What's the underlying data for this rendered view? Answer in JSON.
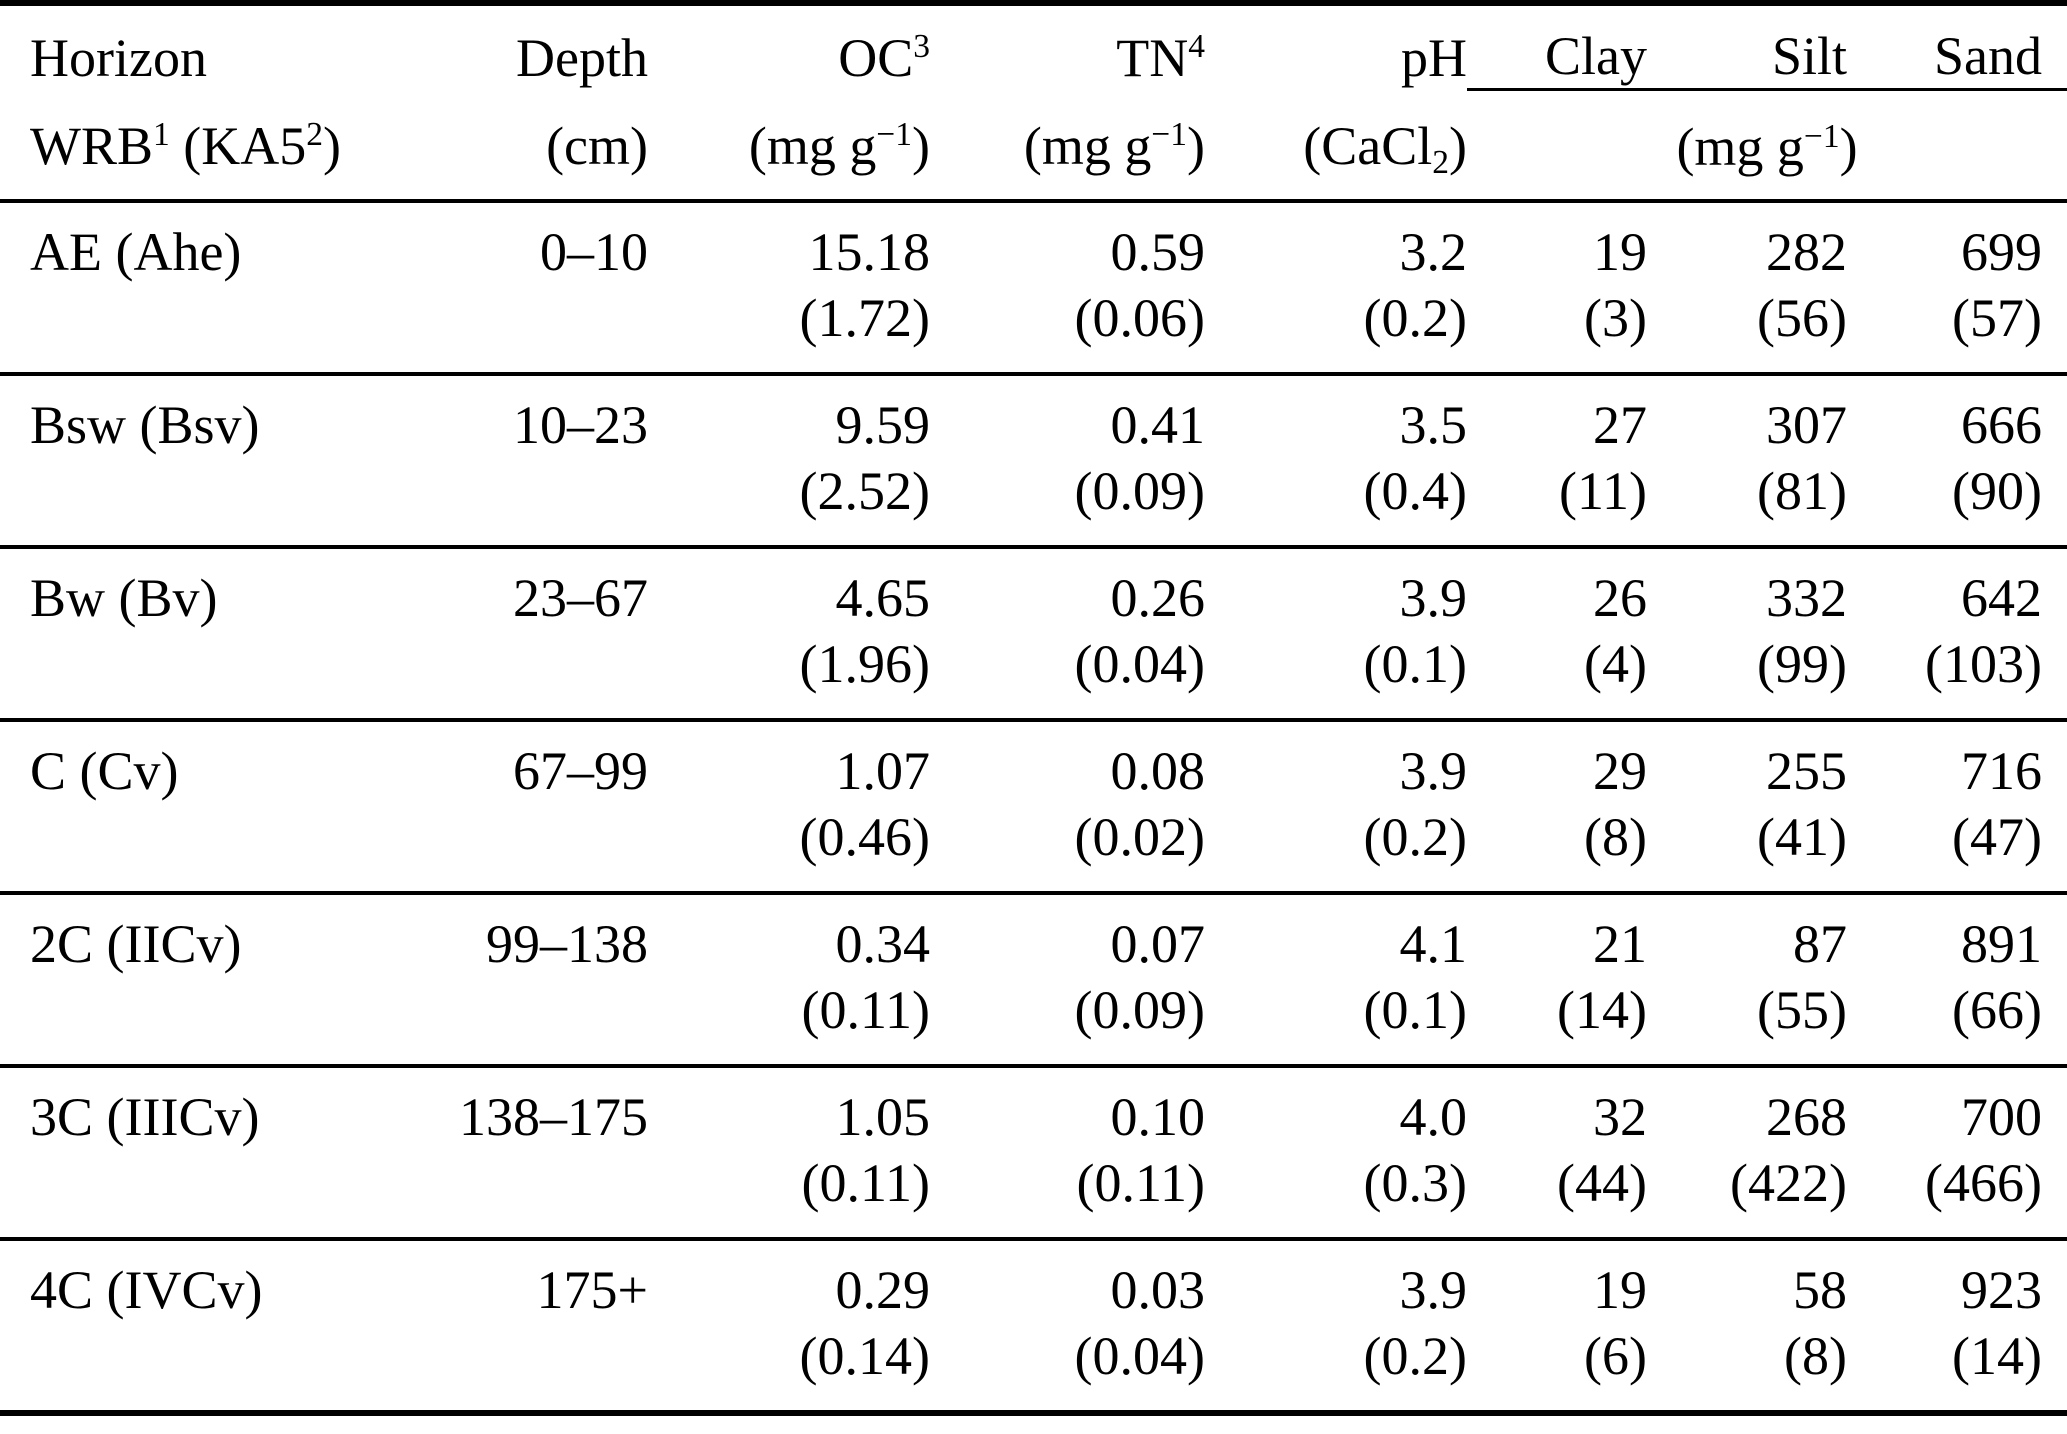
{
  "table": {
    "column_keys": [
      "horizon",
      "depth",
      "oc",
      "tn",
      "ph",
      "clay",
      "silt",
      "sand"
    ],
    "header": {
      "horizon": {
        "line1": "Horizon",
        "line2": {
          "p1": "WRB",
          "s1": "1",
          "p2": " (KA5",
          "s2": "2",
          "p3": ")"
        }
      },
      "depth": {
        "line1": "Depth",
        "line2": "(cm)"
      },
      "oc": {
        "base": "OC",
        "sup": "3",
        "unit": {
          "p1": "(mg g",
          "sup": "−1",
          "p2": ")"
        }
      },
      "tn": {
        "base": "TN",
        "sup": "4",
        "unit": {
          "p1": "(mg g",
          "sup": "−1",
          "p2": ")"
        }
      },
      "ph": {
        "label": "pH",
        "unit": {
          "p1": "(CaCl",
          "sub": "2",
          "p2": ")"
        }
      },
      "clay": "Clay",
      "silt": "Silt",
      "sand": "Sand",
      "texture_unit": {
        "p1": "(mg g",
        "sup": "−1",
        "p2": ")"
      }
    },
    "rows": [
      {
        "cells": [
          {
            "v": "AE (Ahe)",
            "sd": ""
          },
          {
            "v": "0–10",
            "sd": ""
          },
          {
            "v": "15.18",
            "sd": "(1.72)"
          },
          {
            "v": "0.59",
            "sd": "(0.06)"
          },
          {
            "v": "3.2",
            "sd": "(0.2)"
          },
          {
            "v": "19",
            "sd": "(3)"
          },
          {
            "v": "282",
            "sd": "(56)"
          },
          {
            "v": "699",
            "sd": "(57)"
          }
        ]
      },
      {
        "cells": [
          {
            "v": "Bsw (Bsv)",
            "sd": ""
          },
          {
            "v": "10–23",
            "sd": ""
          },
          {
            "v": "9.59",
            "sd": "(2.52)"
          },
          {
            "v": "0.41",
            "sd": "(0.09)"
          },
          {
            "v": "3.5",
            "sd": "(0.4)"
          },
          {
            "v": "27",
            "sd": "(11)"
          },
          {
            "v": "307",
            "sd": "(81)"
          },
          {
            "v": "666",
            "sd": "(90)"
          }
        ]
      },
      {
        "cells": [
          {
            "v": "Bw (Bv)",
            "sd": ""
          },
          {
            "v": "23–67",
            "sd": ""
          },
          {
            "v": "4.65",
            "sd": "(1.96)"
          },
          {
            "v": "0.26",
            "sd": "(0.04)"
          },
          {
            "v": "3.9",
            "sd": "(0.1)"
          },
          {
            "v": "26",
            "sd": "(4)"
          },
          {
            "v": "332",
            "sd": "(99)"
          },
          {
            "v": "642",
            "sd": "(103)"
          }
        ]
      },
      {
        "cells": [
          {
            "v": "C (Cv)",
            "sd": ""
          },
          {
            "v": "67–99",
            "sd": ""
          },
          {
            "v": "1.07",
            "sd": "(0.46)"
          },
          {
            "v": "0.08",
            "sd": "(0.02)"
          },
          {
            "v": "3.9",
            "sd": "(0.2)"
          },
          {
            "v": "29",
            "sd": "(8)"
          },
          {
            "v": "255",
            "sd": "(41)"
          },
          {
            "v": "716",
            "sd": "(47)"
          }
        ]
      },
      {
        "cells": [
          {
            "v": "2C (IICv)",
            "sd": ""
          },
          {
            "v": "99–138",
            "sd": ""
          },
          {
            "v": "0.34",
            "sd": "(0.11)"
          },
          {
            "v": "0.07",
            "sd": "(0.09)"
          },
          {
            "v": "4.1",
            "sd": "(0.1)"
          },
          {
            "v": "21",
            "sd": "(14)"
          },
          {
            "v": "87",
            "sd": "(55)"
          },
          {
            "v": "891",
            "sd": "(66)"
          }
        ]
      },
      {
        "cells": [
          {
            "v": "3C (IIICv)",
            "sd": ""
          },
          {
            "v": "138–175",
            "sd": ""
          },
          {
            "v": "1.05",
            "sd": "(0.11)"
          },
          {
            "v": "0.10",
            "sd": "(0.11)"
          },
          {
            "v": "4.0",
            "sd": "(0.3)"
          },
          {
            "v": "32",
            "sd": "(44)"
          },
          {
            "v": "268",
            "sd": "(422)"
          },
          {
            "v": "700",
            "sd": "(466)"
          }
        ]
      },
      {
        "cells": [
          {
            "v": "4C (IVCv)",
            "sd": ""
          },
          {
            "v": "175+",
            "sd": ""
          },
          {
            "v": "0.29",
            "sd": "(0.14)"
          },
          {
            "v": "0.03",
            "sd": "(0.04)"
          },
          {
            "v": "3.9",
            "sd": "(0.2)"
          },
          {
            "v": "19",
            "sd": "(6)"
          },
          {
            "v": "58",
            "sd": "(8)"
          },
          {
            "v": "923",
            "sd": "(14)"
          }
        ]
      }
    ]
  }
}
